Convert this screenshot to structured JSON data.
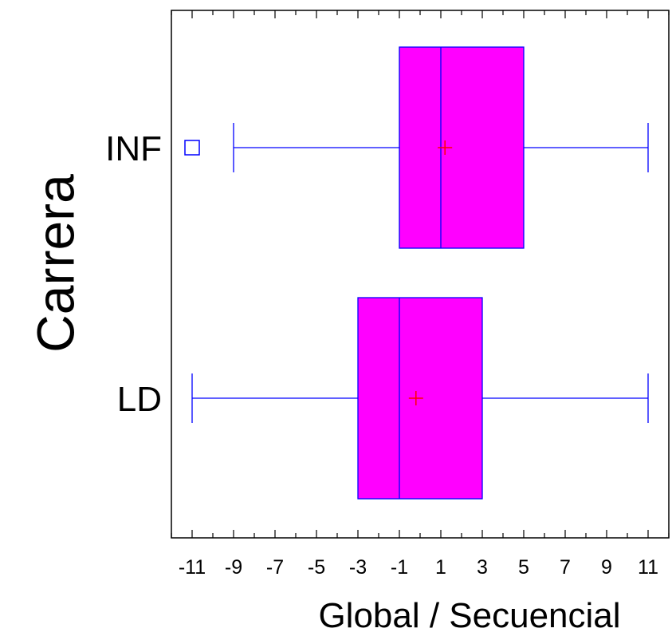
{
  "chart_data": {
    "type": "boxplot",
    "orientation": "horizontal",
    "title": "",
    "xlabel": "Global / Secuencial",
    "ylabel": "Carrera",
    "xlim": [
      -12,
      12
    ],
    "xticks": [
      -11,
      -9,
      -7,
      -5,
      -3,
      -1,
      1,
      3,
      5,
      7,
      9,
      11
    ],
    "grid": false,
    "series": [
      {
        "name": "INF",
        "whisker_low": -9,
        "q1": -1,
        "median": 1,
        "q3": 5,
        "whisker_high": 11,
        "mean": 1.2,
        "outliers": [
          -11
        ]
      },
      {
        "name": "LD",
        "whisker_low": -11,
        "q1": -3,
        "median": -1,
        "q3": 3,
        "whisker_high": 11,
        "mean": -0.2,
        "outliers": []
      }
    ],
    "colors": {
      "box_fill": "#ff00ff",
      "box_stroke": "#0000ff",
      "whisker": "#0000ff",
      "mean_marker": "#ff0000",
      "outlier": "#0000ff",
      "axes": "#000000"
    }
  }
}
